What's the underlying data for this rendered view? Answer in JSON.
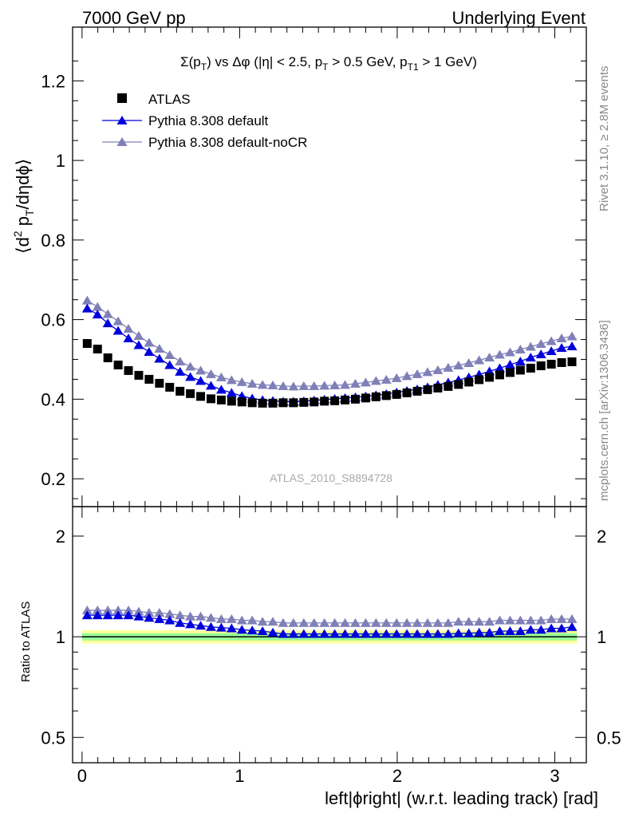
{
  "header": {
    "left_title": "7000 GeV pp",
    "right_title": "Underlying Event"
  },
  "side_labels": {
    "rivet": "Rivet 3.1.10, ≥ 2.8M events",
    "mcplots": "mcplots.cern.ch [arXiv:1306.3436]"
  },
  "chart_data": {
    "type": "scatter",
    "title": "Σ(pT) vs Δφ (|η| < 2.5, pT > 0.5 GeV, pT1 > 1 GeV)",
    "title_parts": {
      "a": "Σ(p",
      "a_sub": "T",
      "b": ") vs Δφ (|η| < 2.5, p",
      "b_sub": "T",
      "c": " > 0.5 GeV, p",
      "c_sub": "T1",
      "d": " > 1 GeV)"
    },
    "ylabel_parts": {
      "a": "⟨d",
      "a_sup": "2",
      "b": " p",
      "b_sub": "T",
      "c": "/dηdϕ⟩"
    },
    "ylabel": "⟨d2 pT/dηdϕ⟩",
    "xlabel": "left|ϕright| (w.r.t. leading track) [rad]",
    "watermark": "ATLAS_2010_S8894728",
    "xlim": [
      -0.06,
      3.2
    ],
    "ylim": [
      0.13,
      1.335
    ],
    "ratio_ylabel": "Ratio to ATLAS",
    "ratio_ylim": [
      0.42,
      2.45
    ],
    "ratio_log": true,
    "yticks": [
      {
        "v": 0.2,
        "label": "0.2"
      },
      {
        "v": 0.4,
        "label": "0.4"
      },
      {
        "v": 0.6,
        "label": "0.6"
      },
      {
        "v": 0.8,
        "label": "0.8"
      },
      {
        "v": 1.0,
        "label": "1"
      },
      {
        "v": 1.2,
        "label": "1.2"
      }
    ],
    "xticks": [
      {
        "v": 0,
        "label": "0"
      },
      {
        "v": 1,
        "label": "1"
      },
      {
        "v": 2,
        "label": "2"
      },
      {
        "v": 3,
        "label": "3"
      }
    ],
    "ratio_ticks": [
      {
        "v": 0.5,
        "label": "0.5"
      },
      {
        "v": 1,
        "label": "1"
      },
      {
        "v": 2,
        "label": "2"
      }
    ],
    "x": [
      0.0327,
      0.0982,
      0.1636,
      0.2291,
      0.2945,
      0.36,
      0.4254,
      0.4909,
      0.5563,
      0.6218,
      0.6872,
      0.7527,
      0.8181,
      0.8836,
      0.949,
      1.0145,
      1.0799,
      1.1454,
      1.2108,
      1.2763,
      1.3417,
      1.4072,
      1.4726,
      1.5381,
      1.6035,
      1.669,
      1.7344,
      1.7999,
      1.8653,
      1.9308,
      1.9962,
      2.0617,
      2.1271,
      2.1926,
      2.258,
      2.3235,
      2.3889,
      2.4544,
      2.5198,
      2.5853,
      2.6507,
      2.7162,
      2.7816,
      2.8471,
      2.9125,
      2.978,
      3.0434,
      3.1089
    ],
    "series": [
      {
        "name": "ATLAS",
        "marker": "square",
        "color": "#000000",
        "values": [
          0.54,
          0.526,
          0.504,
          0.486,
          0.472,
          0.46,
          0.45,
          0.44,
          0.43,
          0.42,
          0.414,
          0.407,
          0.401,
          0.398,
          0.395,
          0.393,
          0.391,
          0.39,
          0.39,
          0.391,
          0.391,
          0.392,
          0.393,
          0.395,
          0.396,
          0.398,
          0.4,
          0.403,
          0.406,
          0.409,
          0.412,
          0.416,
          0.42,
          0.424,
          0.428,
          0.432,
          0.437,
          0.443,
          0.449,
          0.455,
          0.461,
          0.467,
          0.473,
          0.478,
          0.484,
          0.488,
          0.492,
          0.494
        ]
      },
      {
        "name": "Pythia 8.308 default",
        "marker": "triangle",
        "color": "#0000dd",
        "values": [
          0.628,
          0.613,
          0.591,
          0.572,
          0.553,
          0.536,
          0.519,
          0.502,
          0.486,
          0.469,
          0.456,
          0.446,
          0.434,
          0.424,
          0.416,
          0.408,
          0.402,
          0.398,
          0.396,
          0.394,
          0.394,
          0.395,
          0.397,
          0.399,
          0.401,
          0.403,
          0.405,
          0.407,
          0.41,
          0.413,
          0.417,
          0.421,
          0.425,
          0.43,
          0.436,
          0.442,
          0.448,
          0.455,
          0.462,
          0.47,
          0.478,
          0.487,
          0.495,
          0.505,
          0.513,
          0.521,
          0.529,
          0.533
        ]
      },
      {
        "name": "Pythia 8.308 default-noCR",
        "marker": "triangle",
        "color": "#8080b8",
        "values": [
          0.648,
          0.632,
          0.614,
          0.596,
          0.577,
          0.559,
          0.542,
          0.527,
          0.511,
          0.495,
          0.482,
          0.472,
          0.463,
          0.455,
          0.448,
          0.443,
          0.439,
          0.436,
          0.435,
          0.433,
          0.432,
          0.433,
          0.433,
          0.434,
          0.435,
          0.436,
          0.439,
          0.442,
          0.446,
          0.449,
          0.453,
          0.458,
          0.463,
          0.468,
          0.473,
          0.479,
          0.485,
          0.491,
          0.498,
          0.505,
          0.512,
          0.518,
          0.525,
          0.532,
          0.539,
          0.546,
          0.553,
          0.558
        ]
      }
    ],
    "ratio_series": [
      {
        "name": "Pythia 8.308 default",
        "values": [
          1.16,
          1.16,
          1.16,
          1.16,
          1.16,
          1.15,
          1.14,
          1.13,
          1.12,
          1.1,
          1.09,
          1.08,
          1.07,
          1.065,
          1.06,
          1.05,
          1.045,
          1.04,
          1.03,
          1.02,
          1.02,
          1.02,
          1.02,
          1.02,
          1.02,
          1.02,
          1.02,
          1.02,
          1.02,
          1.02,
          1.02,
          1.02,
          1.02,
          1.02,
          1.02,
          1.02,
          1.025,
          1.025,
          1.03,
          1.03,
          1.04,
          1.04,
          1.04,
          1.05,
          1.05,
          1.06,
          1.06,
          1.07
        ]
      },
      {
        "name": "Pythia 8.308 default-noCR",
        "values": [
          1.2,
          1.2,
          1.2,
          1.2,
          1.2,
          1.19,
          1.18,
          1.18,
          1.17,
          1.16,
          1.15,
          1.15,
          1.14,
          1.13,
          1.13,
          1.12,
          1.12,
          1.11,
          1.11,
          1.1,
          1.1,
          1.1,
          1.1,
          1.1,
          1.1,
          1.1,
          1.1,
          1.1,
          1.1,
          1.1,
          1.1,
          1.1,
          1.1,
          1.1,
          1.1,
          1.1,
          1.11,
          1.11,
          1.11,
          1.11,
          1.12,
          1.12,
          1.12,
          1.12,
          1.12,
          1.13,
          1.13,
          1.13
        ]
      }
    ],
    "band_colors": {
      "outer": "#ffff99",
      "inner": "#99ff99"
    },
    "band": {
      "outer": [
        0.955,
        1.045
      ],
      "inner": [
        0.975,
        1.025
      ]
    }
  }
}
